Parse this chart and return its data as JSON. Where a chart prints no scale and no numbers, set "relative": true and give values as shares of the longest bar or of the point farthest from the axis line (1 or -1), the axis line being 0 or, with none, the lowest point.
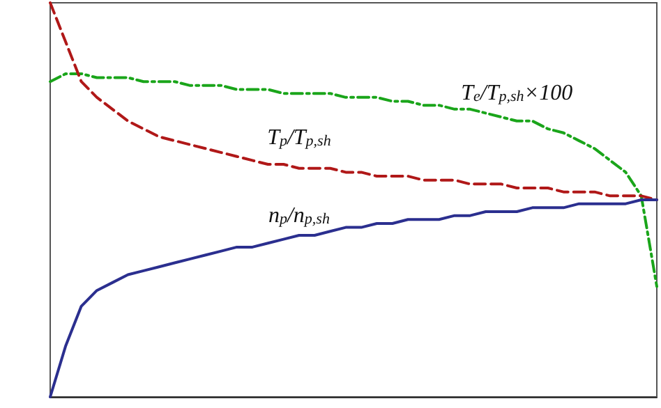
{
  "chart_data": {
    "type": "line",
    "relative": true,
    "grid": false,
    "legend": false,
    "marker": "none",
    "categories": [
      null,
      null,
      null,
      null,
      null,
      null,
      null,
      null,
      null,
      null,
      null,
      null,
      null,
      null,
      null,
      null,
      null,
      null,
      null,
      null,
      null,
      null,
      null,
      null,
      null,
      null,
      null,
      null,
      null,
      null,
      null,
      null,
      null,
      null,
      null,
      null,
      null,
      null,
      null,
      null
    ],
    "series": [
      {
        "name": "T$_{e}$/T$_{p,sh}$×100",
        "color": "#1aa51a",
        "line_style": "dashdot",
        "values": [
          0.8,
          0.82,
          0.82,
          0.81,
          0.81,
          0.81,
          0.8,
          0.8,
          0.8,
          0.79,
          0.79,
          0.79,
          0.78,
          0.78,
          0.78,
          0.77,
          0.77,
          0.77,
          0.77,
          0.76,
          0.76,
          0.76,
          0.75,
          0.75,
          0.74,
          0.74,
          0.73,
          0.73,
          0.72,
          0.71,
          0.7,
          0.7,
          0.68,
          0.67,
          0.65,
          0.63,
          0.6,
          0.57,
          0.51,
          0.28
        ]
      },
      {
        "name": "T$_{p}$/T$_{p,sh}$",
        "color": "#b01818",
        "line_style": "dashed",
        "values": [
          1.0,
          0.9,
          0.8,
          0.76,
          0.73,
          0.7,
          0.68,
          0.66,
          0.65,
          0.64,
          0.63,
          0.62,
          0.61,
          0.6,
          0.59,
          0.59,
          0.58,
          0.58,
          0.58,
          0.57,
          0.57,
          0.56,
          0.56,
          0.56,
          0.55,
          0.55,
          0.55,
          0.54,
          0.54,
          0.54,
          0.53,
          0.53,
          0.53,
          0.52,
          0.52,
          0.52,
          0.51,
          0.51,
          0.51,
          0.5
        ]
      },
      {
        "name": "n$_{p}$/n$_{p,sh}$",
        "color": "#2b2f8f",
        "line_style": "solid",
        "values": [
          0,
          0.13,
          0.23,
          0.27,
          0.29,
          0.31,
          0.32,
          0.33,
          0.34,
          0.35,
          0.36,
          0.37,
          0.38,
          0.38,
          0.39,
          0.4,
          0.41,
          0.41,
          0.42,
          0.43,
          0.43,
          0.44,
          0.44,
          0.45,
          0.45,
          0.45,
          0.46,
          0.46,
          0.47,
          0.47,
          0.47,
          0.48,
          0.48,
          0.48,
          0.49,
          0.49,
          0.49,
          0.49,
          0.5,
          0.5
        ]
      }
    ]
  }
}
